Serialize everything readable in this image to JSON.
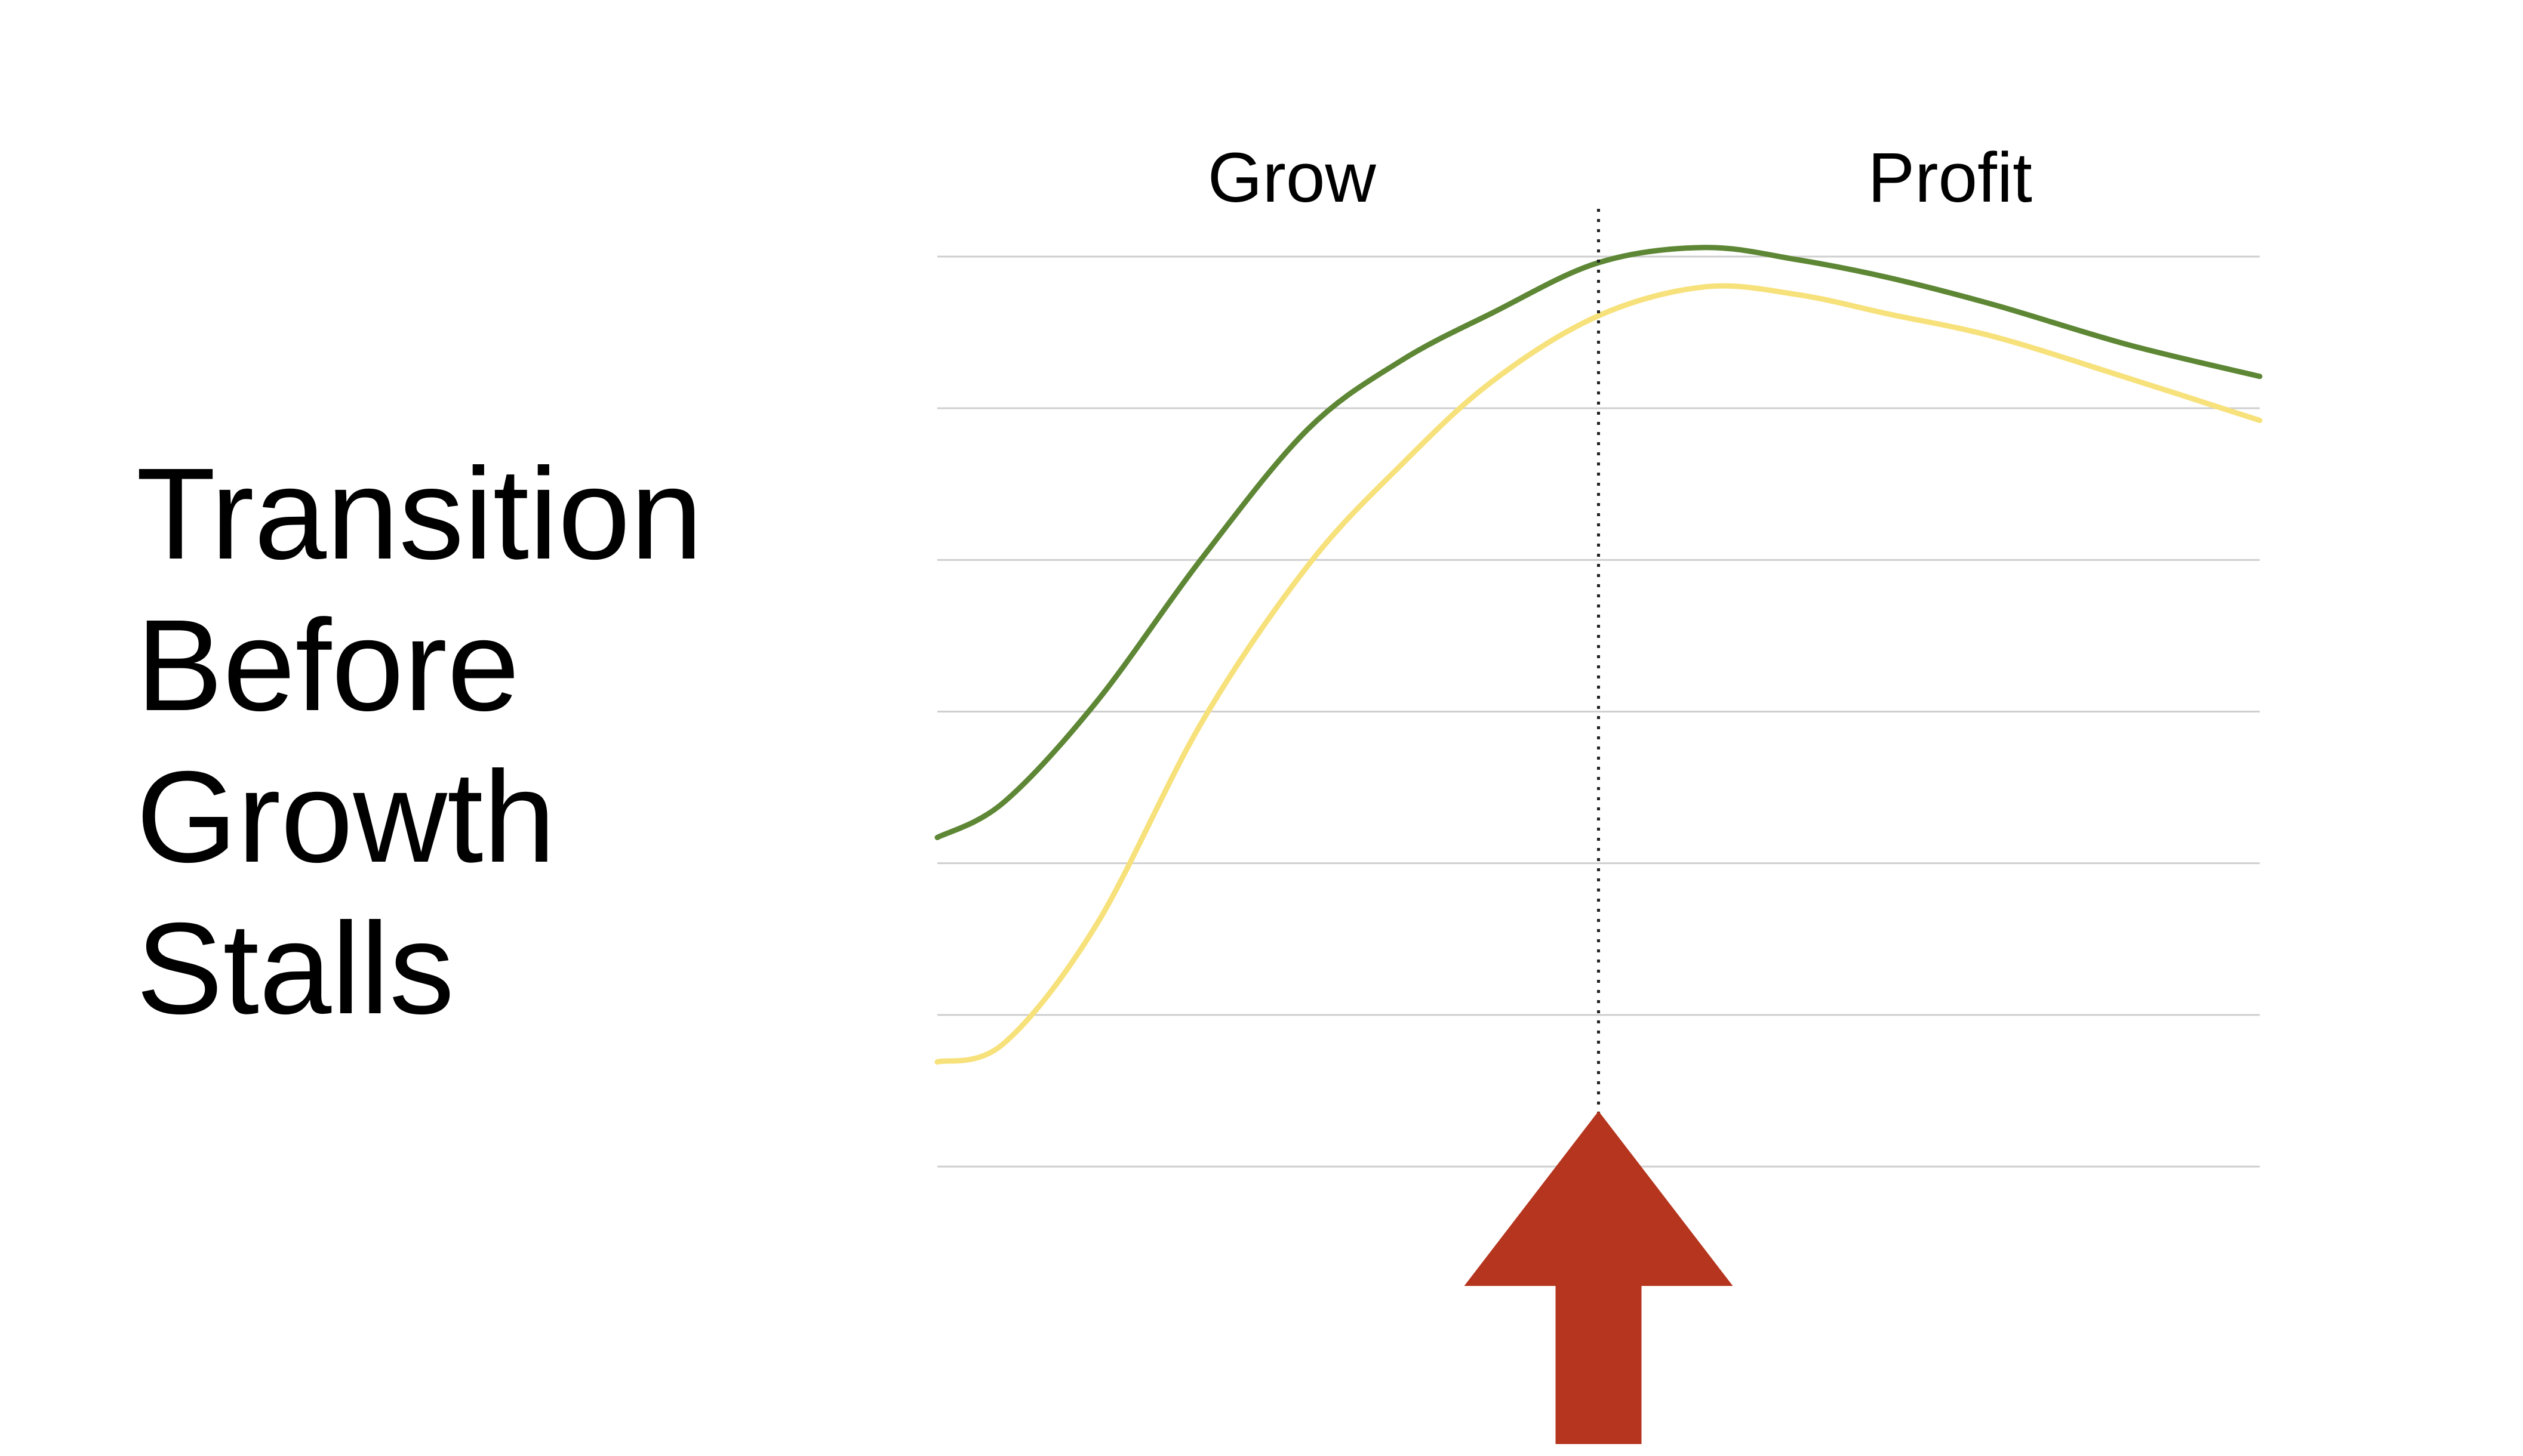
{
  "slide": {
    "title_lines": [
      "Transition",
      "Before",
      "Growth",
      "Stalls"
    ]
  },
  "chart_data": {
    "type": "line",
    "title": "",
    "xlabel": "",
    "ylabel": "",
    "xlim": [
      0,
      100
    ],
    "ylim": [
      0,
      6
    ],
    "grid": true,
    "phase_labels": [
      "Grow",
      "Profit"
    ],
    "phase_split_x": 50,
    "series": [
      {
        "color": "#5e8735",
        "x": [
          0,
          5,
          12,
          20,
          28,
          35,
          42,
          50,
          58,
          65,
          72,
          80,
          90,
          100
        ],
        "y": [
          2.17,
          2.4,
          3.06,
          4.01,
          4.86,
          5.31,
          5.63,
          5.96,
          6.06,
          5.98,
          5.86,
          5.68,
          5.42,
          5.21
        ]
      },
      {
        "color": "#f7e17b",
        "x": [
          0,
          5,
          12,
          20,
          28,
          35,
          42,
          50,
          58,
          65,
          72,
          80,
          90,
          100
        ],
        "y": [
          0.69,
          0.81,
          1.59,
          2.93,
          3.96,
          4.62,
          5.18,
          5.61,
          5.8,
          5.75,
          5.62,
          5.47,
          5.2,
          4.92
        ]
      }
    ],
    "annotation": {
      "type": "up-arrow",
      "x": 50,
      "color": "#b5351e"
    }
  }
}
